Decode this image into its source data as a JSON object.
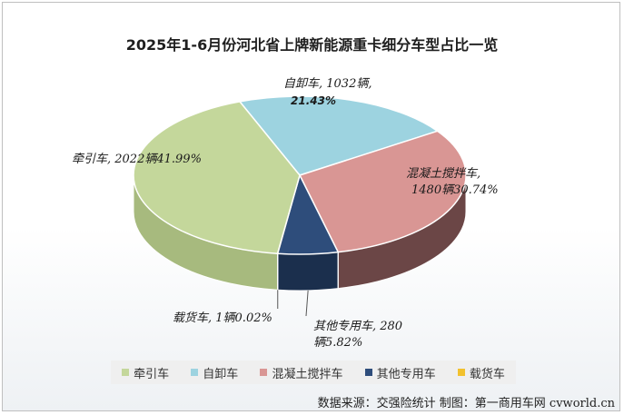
{
  "chart_data": {
    "type": "pie",
    "title": "2025年1-6月份河北省上牌新能源重卡细分车型占比一览",
    "slices": [
      {
        "name": "牵引车",
        "count_label": "2022辆",
        "percent_label": "41.99%",
        "value": 41.99,
        "color": "#c4d79b",
        "side_color": "#a7ba7e"
      },
      {
        "name": "自卸车",
        "count_label": "1032辆,",
        "percent_label": "21.43%",
        "value": 21.43,
        "color": "#9dd3e0",
        "side_color": "#7fb3c0"
      },
      {
        "name": "混凝土搅拌车",
        "count_label": "1480辆",
        "percent_label": "30.74%",
        "value": 30.74,
        "color": "#d99694",
        "side_color": "#6b4646"
      },
      {
        "name": "其他专用车",
        "count_label": "280",
        "percent_label": "辆5.82%",
        "value": 5.82,
        "color": "#2e4d7b",
        "side_color": "#1b2f4d"
      },
      {
        "name": "载货车",
        "count_label": "1辆",
        "percent_label": "0.02%",
        "value": 0.02,
        "color": "#f2c12e",
        "side_color": "#c79a1e"
      }
    ],
    "legend": [
      "牵引车",
      "自卸车",
      "混凝土搅拌车",
      "其他专用车",
      "载货车"
    ],
    "legend_position": "bottom"
  },
  "labels": {
    "zixie_line1": "自卸车, 1032辆,",
    "zixie_line2": "21.43%",
    "qianyin": "牵引车, 2022辆41.99%",
    "hunning_line1": "混凝土搅拌车,",
    "hunning_line2": "1480辆30.74%",
    "qita_line1": "其他专用车, 280",
    "qita_line2": "辆5.82%",
    "zaihuo": "载货车, 1辆0.02%"
  },
  "source_note": "数据来源：交强险统计  制图：第一商用车网 cvworld.cn"
}
